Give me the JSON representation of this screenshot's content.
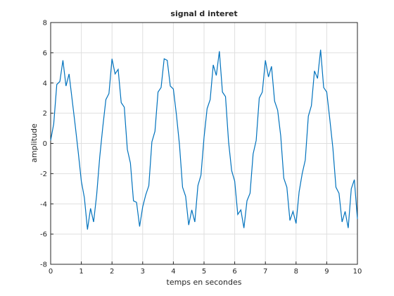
{
  "chart_data": {
    "type": "line",
    "title": "signal d interet",
    "xlabel": "temps en secondes",
    "ylabel": "amplitude",
    "x": [
      0,
      0.1,
      0.2,
      0.3,
      0.4,
      0.5,
      0.6,
      0.7,
      0.8,
      0.9,
      1,
      1.1,
      1.2,
      1.3,
      1.4,
      1.5,
      1.6,
      1.7,
      1.8,
      1.9,
      2,
      2.1,
      2.2,
      2.3,
      2.4,
      2.5,
      2.6,
      2.7,
      2.8,
      2.9,
      3,
      3.1,
      3.2,
      3.3,
      3.4,
      3.5,
      3.6,
      3.7,
      3.8,
      3.9,
      4,
      4.1,
      4.2,
      4.3,
      4.4,
      4.5,
      4.6,
      4.7,
      4.8,
      4.9,
      5,
      5.1,
      5.2,
      5.3,
      5.4,
      5.5,
      5.6,
      5.7,
      5.8,
      5.9,
      6,
      6.1,
      6.2,
      6.3,
      6.4,
      6.5,
      6.6,
      6.7,
      6.8,
      6.9,
      7,
      7.1,
      7.2,
      7.3,
      7.4,
      7.5,
      7.6,
      7.7,
      7.8,
      7.9,
      8,
      8.1,
      8.2,
      8.3,
      8.4,
      8.5,
      8.6,
      8.7,
      8.8,
      8.9,
      9,
      9.1,
      9.2,
      9.3,
      9.4,
      9.5,
      9.6,
      9.7,
      9.8,
      9.9,
      10
    ],
    "values": [
      0.2,
      1.3,
      3.9,
      4.1,
      5.5,
      3.8,
      4.6,
      2.9,
      1.2,
      -0.6,
      -2.5,
      -3.6,
      -5.7,
      -4.3,
      -5.2,
      -3.4,
      -0.9,
      1.1,
      2.9,
      3.3,
      5.6,
      4.6,
      4.9,
      2.7,
      2.4,
      -0.4,
      -1.3,
      -3.8,
      -3.9,
      -5.5,
      -4.2,
      -3.4,
      -2.8,
      0.1,
      0.8,
      3.4,
      3.7,
      5.6,
      5.5,
      3.8,
      3.6,
      1.9,
      -0.1,
      -2.9,
      -3.5,
      -5.4,
      -4.4,
      -5.2,
      -2.8,
      -2.1,
      0.4,
      2.3,
      2.9,
      5.2,
      4.5,
      6.1,
      3.4,
      3.1,
      0.1,
      -1.8,
      -2.5,
      -4.7,
      -4.4,
      -5.6,
      -3.8,
      -3.3,
      -0.7,
      0.2,
      3.0,
      3.4,
      5.5,
      4.4,
      5.1,
      2.8,
      2.2,
      0.5,
      -2.3,
      -2.9,
      -5.1,
      -4.5,
      -5.3,
      -3.2,
      -2.0,
      -1.1,
      1.8,
      2.5,
      4.8,
      4.3,
      6.2,
      3.7,
      3.4,
      1.6,
      -0.3,
      -2.9,
      -3.3,
      -5.2,
      -4.5,
      -5.6,
      -3.0,
      -2.4,
      -5.0
    ],
    "color": "#0072bd",
    "xlim": [
      0,
      10
    ],
    "ylim": [
      -8,
      8
    ],
    "xticks": [
      0,
      1,
      2,
      3,
      4,
      5,
      6,
      7,
      8,
      9,
      10
    ],
    "yticks": [
      -8,
      -6,
      -4,
      -2,
      0,
      2,
      4,
      6,
      8
    ],
    "grid": true
  }
}
